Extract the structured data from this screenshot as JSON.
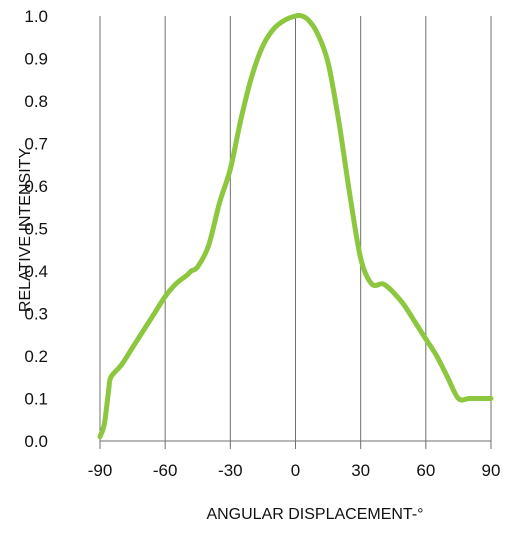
{
  "chart_data": {
    "type": "line",
    "title": "",
    "xlabel": "ANGULAR DISPLACEMENT-°",
    "ylabel": "RELATIVE INTENSITY",
    "xlim": [
      -90,
      90
    ],
    "ylim": [
      0,
      1.0
    ],
    "x_ticks": [
      -90,
      -60,
      -30,
      0,
      30,
      60,
      90
    ],
    "x_tick_labels": [
      "-90",
      "-60",
      "-30",
      "0",
      "30",
      "60",
      "90"
    ],
    "y_ticks": [
      0,
      0.1,
      0.2,
      0.3,
      0.4,
      0.5,
      0.6,
      0.7,
      0.8,
      0.9,
      1.0
    ],
    "y_tick_labels": [
      "0.0",
      "0.1",
      "0.2",
      "0.3",
      "0.4",
      "0.5",
      "0.6",
      "0.7",
      "0.8",
      "0.9",
      "1.0"
    ],
    "grid": {
      "vertical": true,
      "horizontal": false
    },
    "legend": "none",
    "series": [
      {
        "color": "#8dc63f",
        "x": [
          -90,
          -88,
          -86,
          -85,
          -80,
          -75,
          -70,
          -65,
          -60,
          -55,
          -50,
          -48,
          -45,
          -40,
          -35,
          -30,
          -25,
          -20,
          -15,
          -10,
          -5,
          0,
          3,
          6,
          10,
          15,
          20,
          25,
          30,
          35,
          40,
          43,
          45,
          50,
          55,
          60,
          65,
          70,
          75,
          80,
          85,
          90
        ],
        "y": [
          0.01,
          0.04,
          0.12,
          0.15,
          0.18,
          0.22,
          0.26,
          0.3,
          0.34,
          0.37,
          0.39,
          0.4,
          0.41,
          0.46,
          0.56,
          0.64,
          0.76,
          0.86,
          0.93,
          0.97,
          0.99,
          1.0,
          1.0,
          0.99,
          0.96,
          0.89,
          0.75,
          0.58,
          0.43,
          0.37,
          0.37,
          0.36,
          0.35,
          0.32,
          0.28,
          0.24,
          0.2,
          0.15,
          0.1,
          0.1,
          0.1,
          0.1
        ]
      }
    ]
  }
}
